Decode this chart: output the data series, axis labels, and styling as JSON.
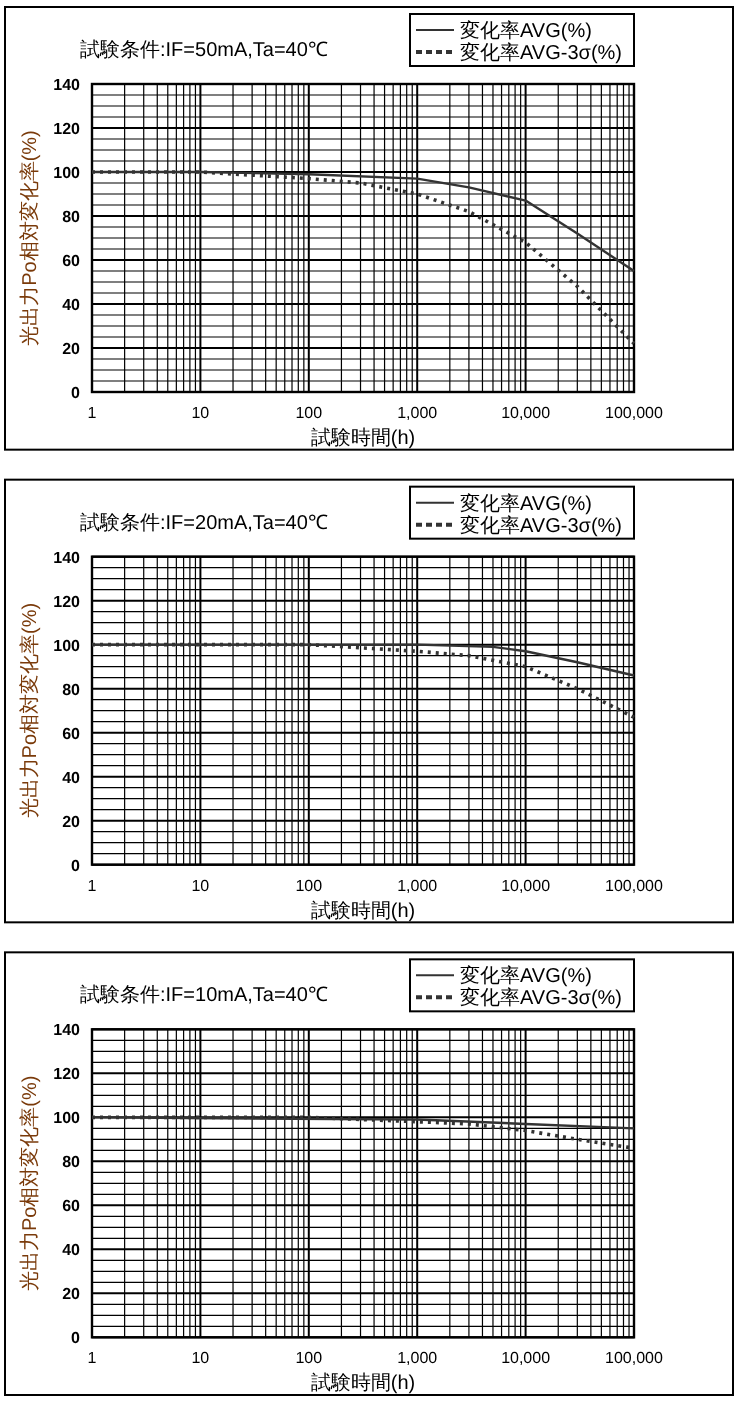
{
  "chart_data": [
    {
      "type": "line",
      "title": "試験条件:IF=50mA,Ta=40℃",
      "xlabel": "試験時間(h)",
      "ylabel": "光出力Po相対変化率(%)",
      "log": "x",
      "grid": true,
      "legend": "top right",
      "xlim": [
        1,
        100000
      ],
      "ylim": [
        0,
        140
      ],
      "yticks": [
        0,
        20,
        40,
        60,
        80,
        100,
        120,
        140
      ],
      "xticks": [
        {
          "value": 1,
          "label": "1"
        },
        {
          "value": 10,
          "label": "10"
        },
        {
          "value": 100,
          "label": "100"
        },
        {
          "value": 1000,
          "label": "1,000"
        },
        {
          "value": 10000,
          "label": "10,000"
        },
        {
          "value": 100000,
          "label": "100,000"
        }
      ],
      "series": [
        {
          "name": "変化率AVG(%)",
          "color": "#333333",
          "line_style": "solid",
          "x": [
            1,
            10,
            100,
            1000,
            3000,
            10000,
            30000,
            100000
          ],
          "values": [
            100,
            100,
            99,
            97,
            93,
            87,
            72,
            55
          ]
        },
        {
          "name": "変化率AVG-3σ(%)",
          "color": "#333333",
          "line_style": "dotted",
          "x": [
            1,
            10,
            100,
            300,
            1000,
            3000,
            10000,
            30000,
            100000
          ],
          "values": [
            100,
            100,
            97,
            95,
            90,
            82,
            68,
            48,
            22
          ]
        }
      ]
    },
    {
      "type": "line",
      "title": "試験条件:IF=20mA,Ta=40℃",
      "xlabel": "試験時間(h)",
      "ylabel": "光出力Po相対変化率(%)",
      "log": "x",
      "grid": true,
      "legend": "top right",
      "xlim": [
        1,
        100000
      ],
      "ylim": [
        0,
        140
      ],
      "yticks": [
        0,
        20,
        40,
        60,
        80,
        100,
        120,
        140
      ],
      "xticks": [
        {
          "value": 1,
          "label": "1"
        },
        {
          "value": 10,
          "label": "10"
        },
        {
          "value": 100,
          "label": "100"
        },
        {
          "value": 1000,
          "label": "1,000"
        },
        {
          "value": 10000,
          "label": "10,000"
        },
        {
          "value": 100000,
          "label": "100,000"
        }
      ],
      "series": [
        {
          "name": "変化率AVG(%)",
          "color": "#333333",
          "line_style": "solid",
          "x": [
            1,
            100,
            1000,
            5000,
            10000,
            30000,
            100000
          ],
          "values": [
            100,
            100,
            100,
            99,
            97,
            92,
            86
          ]
        },
        {
          "name": "変化率AVG-3σ(%)",
          "color": "#333333",
          "line_style": "dotted",
          "x": [
            1,
            100,
            1000,
            3000,
            10000,
            30000,
            100000
          ],
          "values": [
            100,
            100,
            97,
            95,
            90,
            80,
            67
          ]
        }
      ]
    },
    {
      "type": "line",
      "title": "試験条件:IF=10mA,Ta=40℃",
      "xlabel": "試験時間(h)",
      "ylabel": "光出力Po相対変化率(%)",
      "log": "x",
      "grid": true,
      "legend": "top right",
      "xlim": [
        1,
        100000
      ],
      "ylim": [
        0,
        140
      ],
      "yticks": [
        0,
        20,
        40,
        60,
        80,
        100,
        120,
        140
      ],
      "xticks": [
        {
          "value": 1,
          "label": "1"
        },
        {
          "value": 10,
          "label": "10"
        },
        {
          "value": 100,
          "label": "100"
        },
        {
          "value": 1000,
          "label": "1,000"
        },
        {
          "value": 10000,
          "label": "10,000"
        },
        {
          "value": 100000,
          "label": "100,000"
        }
      ],
      "series": [
        {
          "name": "変化率AVG(%)",
          "color": "#333333",
          "line_style": "solid",
          "x": [
            1,
            1000,
            10000,
            100000
          ],
          "values": [
            100,
            99,
            97,
            95
          ]
        },
        {
          "name": "変化率AVG-3σ(%)",
          "color": "#333333",
          "line_style": "dotted",
          "x": [
            1,
            100,
            1000,
            3000,
            10000,
            30000,
            100000
          ],
          "values": [
            100,
            100,
            98,
            97,
            94,
            90,
            86
          ]
        }
      ]
    }
  ]
}
